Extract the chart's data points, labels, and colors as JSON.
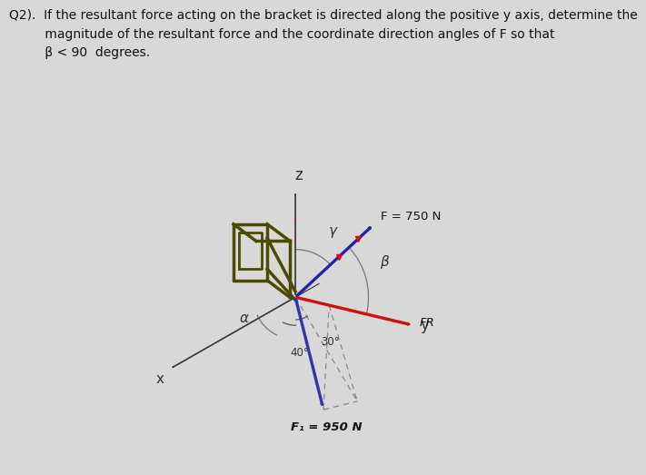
{
  "background_color": "#d8d8d8",
  "title_text": "Q2).  If the resultant force acting on the bracket is directed along the positive y axis, determine the\n         magnitude of the resultant force and the coordinate direction angles of F so that\n         β < 90  degrees.",
  "title_fontsize": 10.0,
  "title_color": "#111111",
  "fig_width": 7.0,
  "fig_height": 5.16,
  "dpi": 100,
  "ox": 0.38,
  "oy": 0.3,
  "z_label": "z",
  "y_label": "y",
  "x_label": "x",
  "F_label": "F = 750 N",
  "F1_label": "F₁ = 950 N",
  "FR_label": "FR",
  "angle_30_label": "30°",
  "angle_40_label": "40°",
  "alpha_label": "α",
  "beta_label": "β",
  "gamma_label": "γ",
  "axis_color": "#333333",
  "F_color": "#2222aa",
  "F1_color": "#3333aa",
  "FR_color": "#cc1111",
  "bracket_color": "#4a4a00",
  "red_tick_color": "#cc1111",
  "arc_color": "#777777",
  "dash_color": "#888888",
  "bracket_linewidth": 2.5,
  "arrow_lw": 2.2
}
